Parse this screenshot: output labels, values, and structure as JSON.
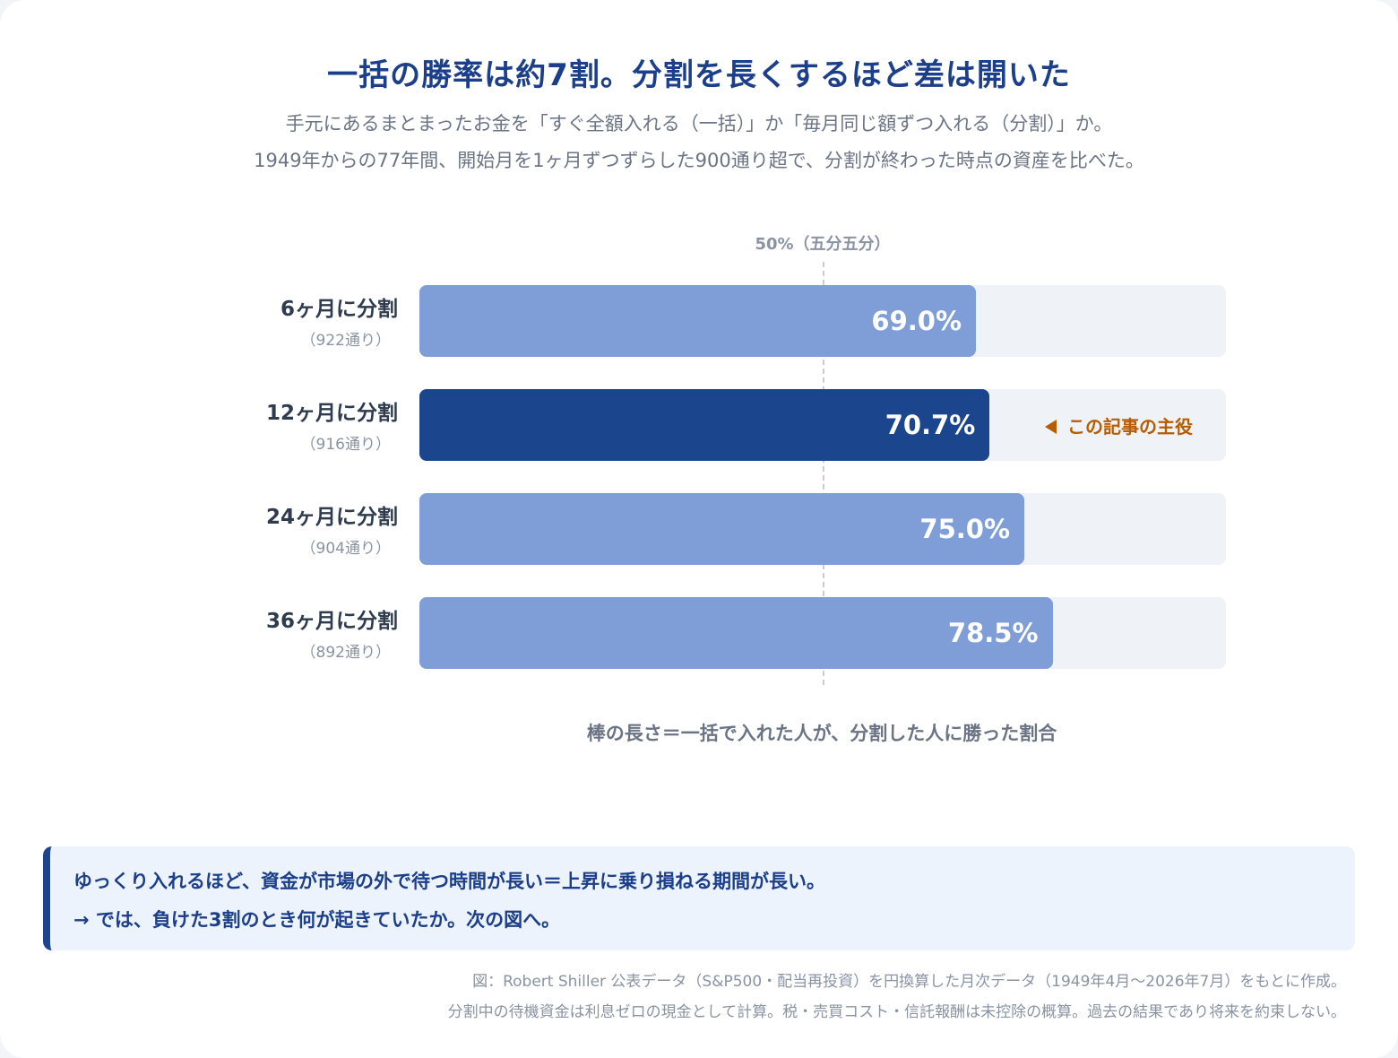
{
  "title": "一括の勝率は約7割。分割を長くするほど差は開いた",
  "subtitle_lines": [
    "手元にあるまとまったお金を「すぐ全額入れる（一括）」か「毎月同じ額ずつ入れる（分割）」か。",
    "1949年からの77年間、開始月を1ヶ月ずつずらした900通り超で、分割が終わった時点の資産を比べた。"
  ],
  "reference_label": "50%（五分五分）",
  "callout": "この記事の主役",
  "axis_caption": "棒の長さ＝一括で入れた人が、分割した人に勝った割合",
  "note": {
    "line1": "ゆっくり入れるほど、資金が市場の外で待つ時間が長い＝上昇に乗り損ねる期間が長い。",
    "line2": "→ では、負けた3割のとき何が起きていたか。次の図へ。"
  },
  "source_lines": [
    "図：Robert Shiller 公表データ（S&P500・配当再投資）を円換算した月次データ（1949年4月〜2026年7月）をもとに作成。",
    "分割中の待機資金は利息ゼロの現金として計算。税・売買コスト・信託報酬は未控除の概算。過去の結果であり将来を約束しない。"
  ],
  "colors": {
    "bar": "#7f9dd6",
    "bar_highlight": "#1b458d",
    "track": "#eff2f7",
    "callout": "#b85c00",
    "title": "#1b3f8a"
  },
  "chart_data": {
    "type": "bar",
    "orientation": "horizontal",
    "categories": [
      "6ヶ月に分割",
      "12ヶ月に分割",
      "24ヶ月に分割",
      "36ヶ月に分割"
    ],
    "counts": [
      "（922通り）",
      "（916通り）",
      "（904通り）",
      "（892通り）"
    ],
    "values": [
      69.0,
      70.7,
      75.0,
      78.5
    ],
    "value_labels": [
      "69.0%",
      "70.7%",
      "75.0%",
      "78.5%"
    ],
    "highlight_index": 1,
    "reference_value": 50,
    "xlim": [
      0,
      100
    ],
    "unit": "%"
  }
}
